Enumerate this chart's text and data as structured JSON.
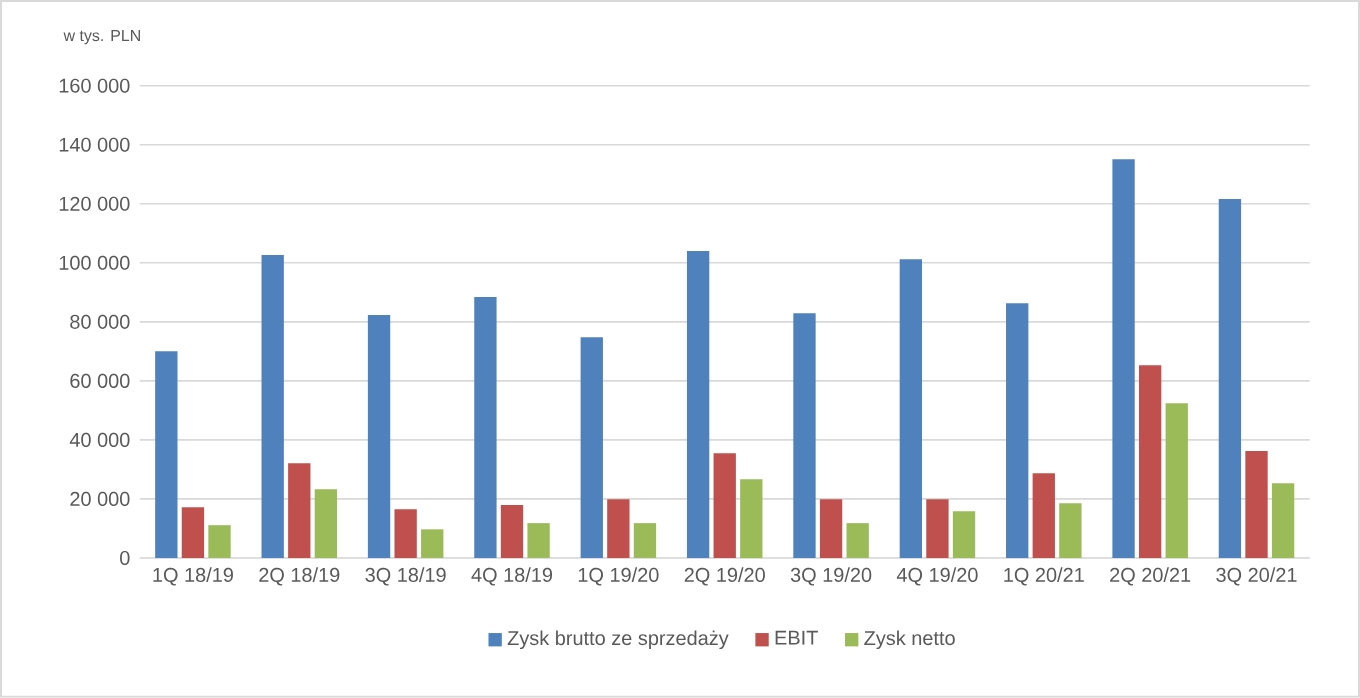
{
  "chart_data": {
    "type": "bar",
    "ylabel": "w tys. PLN",
    "categories": [
      "1Q 18/19",
      "2Q 18/19",
      "3Q 18/19",
      "4Q 18/19",
      "1Q 19/20",
      "2Q 19/20",
      "3Q 19/20",
      "4Q 19/20",
      "1Q 20/21",
      "2Q 20/21",
      "3Q 20/21"
    ],
    "series": [
      {
        "name": "Zysk brutto ze sprzedaży",
        "color": "#4f81bd",
        "values": [
          70000,
          102600,
          82300,
          88400,
          74800,
          104000,
          82900,
          101200,
          86300,
          135100,
          121600
        ]
      },
      {
        "name": "EBIT",
        "color": "#c0504d",
        "values": [
          17200,
          32100,
          16500,
          17900,
          19900,
          35500,
          19900,
          19900,
          28700,
          65300,
          36200
        ]
      },
      {
        "name": "Zysk netto",
        "color": "#9bbb59",
        "values": [
          11100,
          23300,
          9700,
          11800,
          11800,
          26700,
          11800,
          15800,
          18500,
          52400,
          25300
        ]
      }
    ],
    "ylim": [
      0,
      160000
    ],
    "yticks": [
      0,
      {
        "value": 20000,
        "label": "20 000"
      },
      {
        "value": 40000,
        "label": "40 000"
      },
      {
        "value": 60000,
        "label": "60 000"
      },
      {
        "value": 80000,
        "label": "80 000"
      },
      {
        "value": 100000,
        "label": "100 000"
      },
      {
        "value": 120000,
        "label": "120 000"
      },
      {
        "value": 140000,
        "label": "140 000"
      },
      {
        "value": 160000,
        "label": "160 000"
      }
    ],
    "grid": "y",
    "legend": "bottom"
  }
}
